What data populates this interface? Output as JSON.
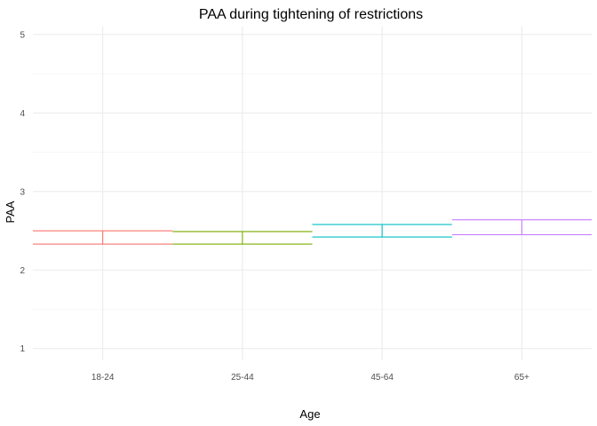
{
  "chart_data": {
    "type": "errorbar",
    "title": "PAA during tightening of restrictions",
    "xlabel": "Age",
    "ylabel": "PAA",
    "categories": [
      "18-24",
      "25-44",
      "45-64",
      "65+"
    ],
    "series": [
      {
        "category": "18-24",
        "lower": 2.33,
        "upper": 2.5,
        "color": "#F8766D"
      },
      {
        "category": "25-44",
        "lower": 2.33,
        "upper": 2.49,
        "color": "#7CAE00"
      },
      {
        "category": "45-64",
        "lower": 2.42,
        "upper": 2.58,
        "color": "#00BFC4"
      },
      {
        "category": "65+",
        "lower": 2.45,
        "upper": 2.64,
        "color": "#C77CFF"
      }
    ],
    "yticks": [
      1,
      2,
      3,
      4,
      5
    ],
    "ylim": [
      0.85,
      5.1
    ],
    "grid": true,
    "legend": "none"
  }
}
